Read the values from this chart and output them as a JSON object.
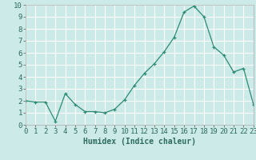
{
  "x": [
    0,
    1,
    2,
    3,
    4,
    5,
    6,
    7,
    8,
    9,
    10,
    11,
    12,
    13,
    14,
    15,
    16,
    17,
    18,
    19,
    20,
    21,
    22,
    23
  ],
  "y": [
    2.0,
    1.9,
    1.9,
    0.3,
    2.6,
    1.7,
    1.1,
    1.1,
    1.0,
    1.3,
    2.1,
    3.3,
    4.3,
    5.1,
    6.1,
    7.3,
    9.4,
    9.9,
    9.0,
    6.5,
    5.8,
    4.4,
    4.7,
    1.7
  ],
  "line_color": "#2d8b73",
  "marker": "+",
  "marker_size": 3,
  "bg_color": "#cceae7",
  "grid_color": "#ffffff",
  "xlabel": "Humidex (Indice chaleur)",
  "ylim": [
    0,
    10
  ],
  "xlim": [
    0,
    23
  ],
  "xticks": [
    0,
    1,
    2,
    3,
    4,
    5,
    6,
    7,
    8,
    9,
    10,
    11,
    12,
    13,
    14,
    15,
    16,
    17,
    18,
    19,
    20,
    21,
    22,
    23
  ],
  "yticks": [
    0,
    1,
    2,
    3,
    4,
    5,
    6,
    7,
    8,
    9,
    10
  ],
  "xlabel_fontsize": 7,
  "tick_fontsize": 6.5,
  "tick_color": "#2d6b5e",
  "label_color": "#2d6b5e"
}
